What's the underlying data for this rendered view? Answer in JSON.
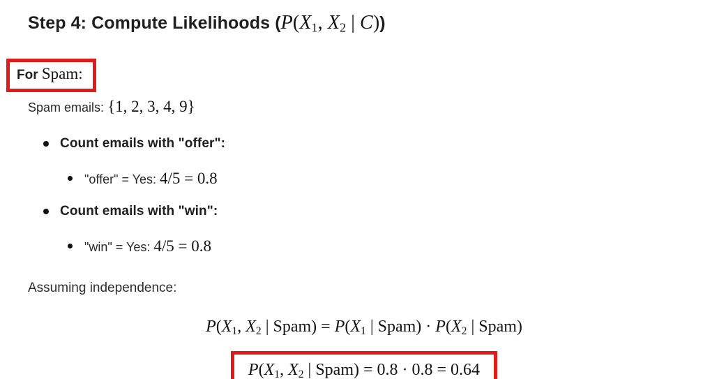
{
  "colors": {
    "highlight_red": "#e01b1b",
    "body_text": "#242424",
    "math_text": "#141414",
    "background": "#ffffff"
  },
  "title": {
    "prefix": "Step 4: Compute Likelihoods (",
    "suffix": ")",
    "math_tokens": [
      {
        "t": "P",
        "k": "v"
      },
      {
        "t": "(",
        "k": "r"
      },
      {
        "t": "X",
        "k": "v"
      },
      {
        "t": "1",
        "k": "s"
      },
      {
        "t": ", ",
        "k": "r"
      },
      {
        "t": "X",
        "k": "v"
      },
      {
        "t": "2",
        "k": "s"
      },
      {
        "t": " | ",
        "k": "r"
      },
      {
        "t": "C",
        "k": "v"
      },
      {
        "t": ")",
        "k": "r"
      }
    ]
  },
  "for_spam": {
    "bold_label": "For",
    "class_label": "Spam:"
  },
  "spam_emails": {
    "label": "Spam emails:",
    "set": "{1, 2, 3, 4, 9}"
  },
  "bullets": [
    {
      "label": "Count emails with \"offer\":",
      "sub": {
        "prefix": "\"offer\" = Yes:",
        "math": "4/5 = 0.8"
      }
    },
    {
      "label": "Count emails with \"win\":",
      "sub": {
        "prefix": "\"win\" = Yes:",
        "math": "4/5 = 0.8"
      }
    }
  ],
  "assuming_label": "Assuming independence:",
  "equations": {
    "product_rule": {
      "tokens": [
        {
          "t": "P",
          "k": "v"
        },
        {
          "t": "(",
          "k": "r"
        },
        {
          "t": "X",
          "k": "v"
        },
        {
          "t": "1",
          "k": "s"
        },
        {
          "t": ", ",
          "k": "r"
        },
        {
          "t": "X",
          "k": "v"
        },
        {
          "t": "2",
          "k": "s"
        },
        {
          "t": " | Spam) = ",
          "k": "r"
        },
        {
          "t": "P",
          "k": "v"
        },
        {
          "t": "(",
          "k": "r"
        },
        {
          "t": "X",
          "k": "v"
        },
        {
          "t": "1",
          "k": "s"
        },
        {
          "t": " | Spam) · ",
          "k": "r"
        },
        {
          "t": "P",
          "k": "v"
        },
        {
          "t": "(",
          "k": "r"
        },
        {
          "t": "X",
          "k": "v"
        },
        {
          "t": "2",
          "k": "s"
        },
        {
          "t": " | Spam)",
          "k": "r"
        }
      ]
    },
    "result": {
      "highlighted": true,
      "tokens": [
        {
          "t": "P",
          "k": "v"
        },
        {
          "t": "(",
          "k": "r"
        },
        {
          "t": "X",
          "k": "v"
        },
        {
          "t": "1",
          "k": "s"
        },
        {
          "t": ", ",
          "k": "r"
        },
        {
          "t": "X",
          "k": "v"
        },
        {
          "t": "2",
          "k": "s"
        },
        {
          "t": " | Spam) = 0.8 · 0.8 = 0.64",
          "k": "r"
        }
      ]
    }
  }
}
